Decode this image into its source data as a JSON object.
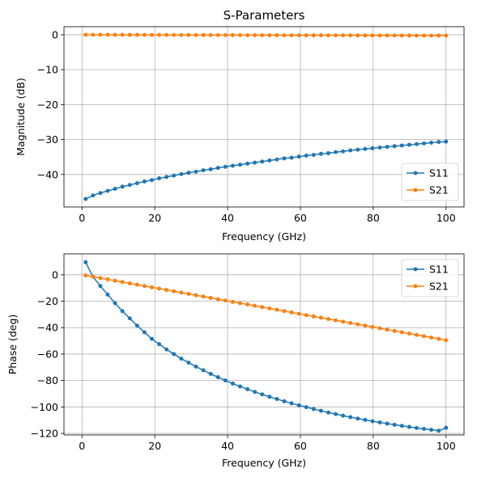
{
  "chart_data": [
    {
      "type": "line",
      "title": "S-Parameters",
      "xlabel": "Frequency (GHz)",
      "ylabel": "Magnitude (dB)",
      "xlim": [
        -4.95,
        104.95
      ],
      "ylim": [
        -49.3,
        2.3
      ],
      "xticks": [
        0,
        20,
        40,
        60,
        80,
        100
      ],
      "xtick_labels": [
        "0",
        "20",
        "40",
        "60",
        "80",
        "100"
      ],
      "yticks": [
        0,
        -10,
        -20,
        -30,
        -40
      ],
      "ytick_labels": [
        "0",
        "−10",
        "−20",
        "−30",
        "−40"
      ],
      "grid": true,
      "legend": "lower-right",
      "x": [
        1,
        3.02,
        5.04,
        7.06,
        9.08,
        11.1,
        13.12,
        15.14,
        17.16,
        19.18,
        21.2,
        23.22,
        25.24,
        27.27,
        29.29,
        31.31,
        33.33,
        35.35,
        37.37,
        39.39,
        41.41,
        43.43,
        45.45,
        47.47,
        49.49,
        51.51,
        53.53,
        55.55,
        57.57,
        59.59,
        61.61,
        63.63,
        65.65,
        67.67,
        69.69,
        71.71,
        73.73,
        75.76,
        77.78,
        79.8,
        81.82,
        83.84,
        85.86,
        87.88,
        89.9,
        91.92,
        93.94,
        95.96,
        97.98,
        100
      ],
      "series": [
        {
          "name": "S11",
          "color": "#1f77b4",
          "values": [
            -47.0,
            -46.0,
            -45.3,
            -44.7,
            -44.1,
            -43.5,
            -43.0,
            -42.5,
            -42.0,
            -41.6,
            -41.1,
            -40.7,
            -40.3,
            -39.9,
            -39.5,
            -39.2,
            -38.8,
            -38.5,
            -38.1,
            -37.8,
            -37.5,
            -37.2,
            -36.9,
            -36.6,
            -36.3,
            -36.0,
            -35.7,
            -35.4,
            -35.2,
            -34.9,
            -34.6,
            -34.4,
            -34.1,
            -33.9,
            -33.6,
            -33.4,
            -33.1,
            -32.9,
            -32.7,
            -32.5,
            -32.3,
            -32.1,
            -31.9,
            -31.7,
            -31.5,
            -31.3,
            -31.1,
            -30.9,
            -30.7,
            -30.6
          ]
        },
        {
          "name": "S21",
          "color": "#ff7f0e",
          "values": [
            0,
            -0.01,
            -0.02,
            -0.02,
            -0.03,
            -0.04,
            -0.04,
            -0.05,
            -0.05,
            -0.06,
            -0.06,
            -0.07,
            -0.07,
            -0.08,
            -0.08,
            -0.09,
            -0.09,
            -0.1,
            -0.1,
            -0.11,
            -0.11,
            -0.12,
            -0.12,
            -0.13,
            -0.13,
            -0.14,
            -0.14,
            -0.15,
            -0.15,
            -0.16,
            -0.16,
            -0.17,
            -0.17,
            -0.18,
            -0.18,
            -0.19,
            -0.19,
            -0.2,
            -0.2,
            -0.21,
            -0.21,
            -0.22,
            -0.22,
            -0.23,
            -0.23,
            -0.24,
            -0.24,
            -0.25,
            -0.25,
            -0.26
          ]
        }
      ]
    },
    {
      "type": "line",
      "title": "",
      "xlabel": "Frequency (GHz)",
      "ylabel": "Phase (deg)",
      "xlim": [
        -4.95,
        104.95
      ],
      "ylim": [
        -121.2,
        15.8
      ],
      "xticks": [
        0,
        20,
        40,
        60,
        80,
        100
      ],
      "xtick_labels": [
        "0",
        "20",
        "40",
        "60",
        "80",
        "100"
      ],
      "yticks": [
        0,
        -20,
        -40,
        -60,
        -80,
        -100,
        -120
      ],
      "ytick_labels": [
        "0",
        "−20",
        "−40",
        "−60",
        "−80",
        "−100",
        "−120"
      ],
      "grid": true,
      "legend": "upper-right",
      "x": [
        1,
        3.02,
        5.04,
        7.06,
        9.08,
        11.1,
        13.12,
        15.14,
        17.16,
        19.18,
        21.2,
        23.22,
        25.24,
        27.27,
        29.29,
        31.31,
        33.33,
        35.35,
        37.37,
        39.39,
        41.41,
        43.43,
        45.45,
        47.47,
        49.49,
        51.51,
        53.53,
        55.55,
        57.57,
        59.59,
        61.61,
        63.63,
        65.65,
        67.67,
        69.69,
        71.71,
        73.73,
        75.76,
        77.78,
        79.8,
        81.82,
        83.84,
        85.86,
        87.88,
        89.9,
        91.92,
        93.94,
        95.96,
        97.98,
        100
      ],
      "series": [
        {
          "name": "S11",
          "color": "#1f77b4",
          "values": [
            9.5,
            -1.5,
            -8.5,
            -15.0,
            -21.5,
            -27.5,
            -33.0,
            -38.5,
            -43.5,
            -48.5,
            -52.5,
            -56.5,
            -60.0,
            -63.5,
            -66.5,
            -69.5,
            -72.3,
            -75.0,
            -77.5,
            -80.0,
            -82.3,
            -84.5,
            -86.6,
            -88.6,
            -90.5,
            -92.3,
            -94.0,
            -95.7,
            -97.3,
            -98.8,
            -100.2,
            -101.6,
            -102.9,
            -104.2,
            -105.4,
            -106.6,
            -107.7,
            -108.8,
            -109.8,
            -110.8,
            -111.7,
            -112.6,
            -113.5,
            -114.3,
            -115.1,
            -115.9,
            -116.6,
            -117.3,
            -118.0,
            -115.8
          ]
        },
        {
          "name": "S21",
          "color": "#ff7f0e",
          "values": [
            -0.5,
            -1.5,
            -2.5,
            -3.5,
            -4.5,
            -5.5,
            -6.5,
            -7.5,
            -8.5,
            -9.5,
            -10.5,
            -11.5,
            -12.5,
            -13.5,
            -14.5,
            -15.5,
            -16.5,
            -17.5,
            -18.5,
            -19.5,
            -20.5,
            -21.5,
            -22.5,
            -23.5,
            -24.5,
            -25.5,
            -26.5,
            -27.5,
            -28.5,
            -29.5,
            -30.5,
            -31.5,
            -32.5,
            -33.5,
            -34.5,
            -35.5,
            -36.5,
            -37.5,
            -38.5,
            -39.5,
            -40.5,
            -41.5,
            -42.5,
            -43.5,
            -44.5,
            -45.5,
            -46.5,
            -47.5,
            -48.5,
            -49.5
          ]
        }
      ]
    }
  ]
}
